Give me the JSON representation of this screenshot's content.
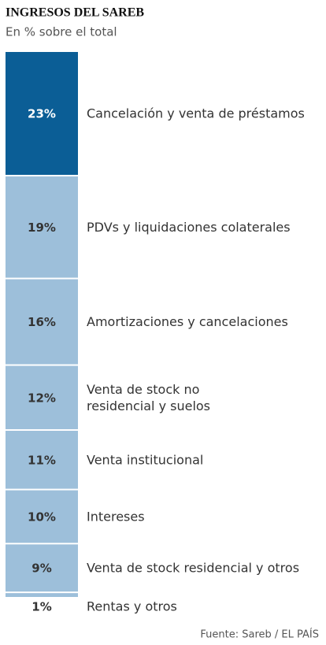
{
  "chart_data": {
    "type": "stacked",
    "title": "INGRESOS DEL SAREB",
    "subtitle": "En % sobre el total",
    "source": "Fuente: Sareb / EL PAÍS",
    "categories": [
      "Cancelación y venta de préstamos",
      "PDVs y liquidaciones colaterales",
      "Amortizaciones y cancelaciones",
      [
        "Venta de stock no",
        "residencial y suelos"
      ],
      "Venta institucional",
      "Intereses",
      "Venta de stock residencial y otros",
      "Rentas y otros"
    ],
    "values": [
      23,
      19,
      16,
      12,
      11,
      10,
      9,
      1
    ],
    "value_labels": [
      "23%",
      "19%",
      "16%",
      "12%",
      "11%",
      "10%",
      "9%",
      "1%"
    ],
    "colors": [
      "#0b5e96",
      "#9dbfda",
      "#9dbfda",
      "#9dbfda",
      "#9dbfda",
      "#9dbfda",
      "#9dbfda",
      "#9dbfda"
    ]
  }
}
